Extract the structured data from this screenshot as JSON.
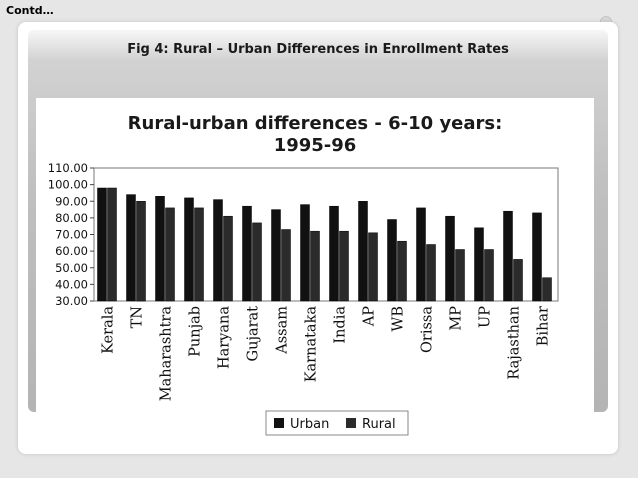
{
  "header": {
    "contd": "Contd…"
  },
  "slide": {
    "figure_title": "Fig 4: Rural – Urban Differences in Enrollment Rates"
  },
  "colors": {
    "urban": "#111111",
    "rural": "#2b2b2b"
  },
  "chart_data": {
    "type": "bar",
    "title_lines": [
      "Rural-urban differences - 6-10 years:",
      "1995-96"
    ],
    "categories": [
      "Kerala",
      "TN",
      "Maharashtra",
      "Punjab",
      "Haryana",
      "Gujarat",
      "Assam",
      "Karnataka",
      "India",
      "AP",
      "WB",
      "Orissa",
      "MP",
      "UP",
      "Rajasthan",
      "Bihar"
    ],
    "series": [
      {
        "name": "Urban",
        "values": [
          98,
          94,
          93,
          92,
          91,
          87,
          85,
          88,
          87,
          90,
          79,
          86,
          81,
          74,
          84,
          83
        ]
      },
      {
        "name": "Rural",
        "values": [
          98,
          90,
          86,
          86,
          81,
          77,
          73,
          72,
          72,
          71,
          66,
          64,
          61,
          61,
          55,
          44
        ]
      }
    ],
    "ylim": [
      30,
      110
    ],
    "yticks": [
      "30.00",
      "40.00",
      "50.00",
      "60.00",
      "70.00",
      "80.00",
      "90.00",
      "100.00",
      "110.00"
    ],
    "grid": false,
    "legend_position": "bottom"
  }
}
